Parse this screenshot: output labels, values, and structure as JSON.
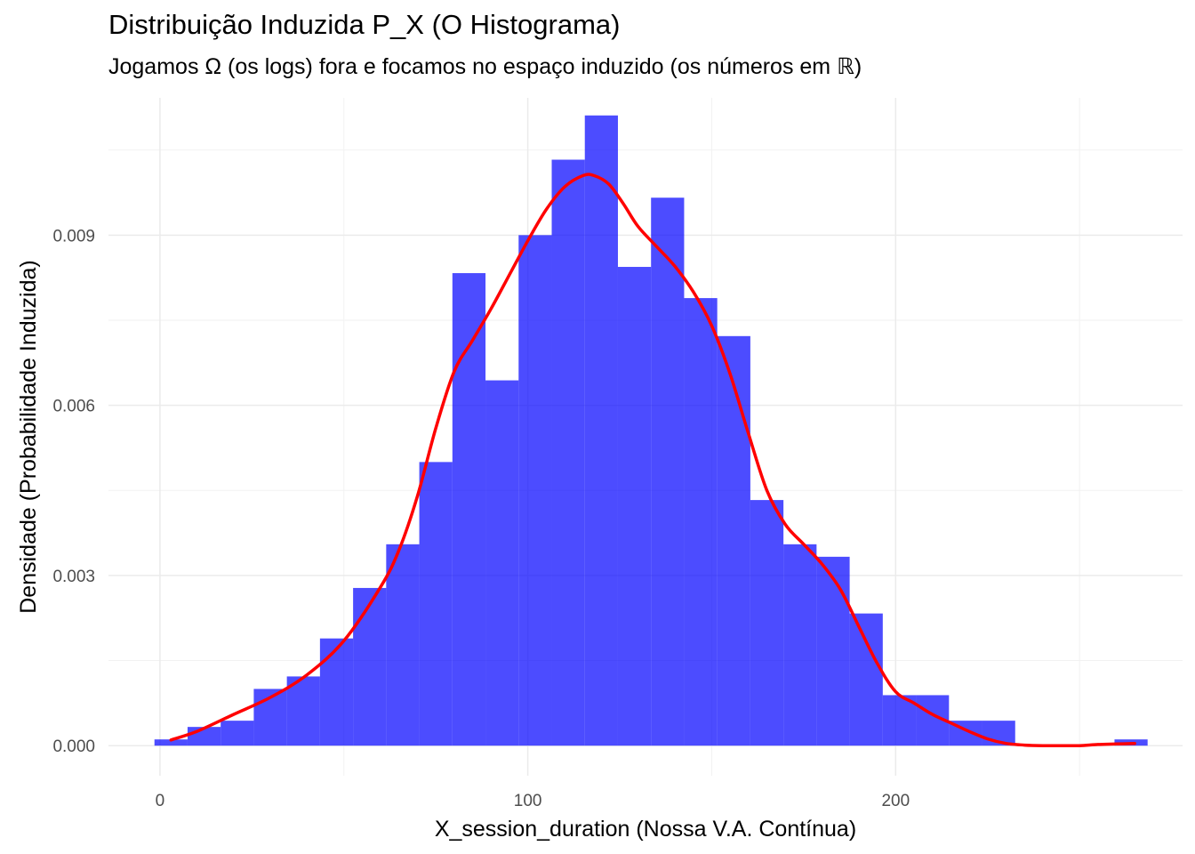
{
  "chart_data": {
    "type": "bar",
    "title": "Distribuição Induzida P_X (O Histograma)",
    "subtitle": "Jogamos Ω (os logs) fora e focamos no espaço induzido (os números em ℝ)",
    "xlabel": "X_session_duration (Nossa V.A. Contínua)",
    "ylabel": "Densidade (Probabilidade Induzida)",
    "xlim": [
      -14,
      278
    ],
    "ylim": [
      -0.00053,
      0.01142
    ],
    "x_ticks": [
      0,
      100,
      200
    ],
    "y_ticks": [
      0.0,
      0.003,
      0.006,
      0.009
    ],
    "x_tick_labels": [
      "0",
      "100",
      "200"
    ],
    "y_tick_labels": [
      "0.000",
      "0.003",
      "0.006",
      "0.009"
    ],
    "grid": true,
    "bin_width": 9.0,
    "histogram": {
      "name": "",
      "color": "#0000ff",
      "bins": [
        {
          "start": -1.5,
          "end": 7.5,
          "density": 0.00011
        },
        {
          "start": 7.5,
          "end": 16.5,
          "density": 0.00033
        },
        {
          "start": 16.5,
          "end": 25.5,
          "density": 0.00044
        },
        {
          "start": 25.5,
          "end": 34.5,
          "density": 0.001
        },
        {
          "start": 34.5,
          "end": 43.5,
          "density": 0.00122
        },
        {
          "start": 43.5,
          "end": 52.5,
          "density": 0.00189
        },
        {
          "start": 52.5,
          "end": 61.5,
          "density": 0.00278
        },
        {
          "start": 61.5,
          "end": 70.5,
          "density": 0.00355
        },
        {
          "start": 70.5,
          "end": 79.5,
          "density": 0.005
        },
        {
          "start": 79.5,
          "end": 88.5,
          "density": 0.00833
        },
        {
          "start": 88.5,
          "end": 97.5,
          "density": 0.00644
        },
        {
          "start": 97.5,
          "end": 106.5,
          "density": 0.009
        },
        {
          "start": 106.5,
          "end": 115.5,
          "density": 0.01033
        },
        {
          "start": 115.5,
          "end": 124.5,
          "density": 0.01111
        },
        {
          "start": 124.5,
          "end": 133.5,
          "density": 0.00844
        },
        {
          "start": 133.5,
          "end": 142.5,
          "density": 0.00966
        },
        {
          "start": 142.5,
          "end": 151.5,
          "density": 0.00789
        },
        {
          "start": 151.5,
          "end": 160.5,
          "density": 0.00722
        },
        {
          "start": 160.5,
          "end": 169.5,
          "density": 0.00433
        },
        {
          "start": 169.5,
          "end": 178.5,
          "density": 0.00355
        },
        {
          "start": 178.5,
          "end": 187.5,
          "density": 0.00333
        },
        {
          "start": 187.5,
          "end": 196.5,
          "density": 0.00233
        },
        {
          "start": 196.5,
          "end": 205.5,
          "density": 0.00089
        },
        {
          "start": 205.5,
          "end": 214.5,
          "density": 0.00089
        },
        {
          "start": 214.5,
          "end": 223.5,
          "density": 0.00044
        },
        {
          "start": 223.5,
          "end": 232.5,
          "density": 0.00044
        },
        {
          "start": 232.5,
          "end": 241.5,
          "density": 0.0
        },
        {
          "start": 241.5,
          "end": 250.5,
          "density": 0.0
        },
        {
          "start": 250.5,
          "end": 259.5,
          "density": 0.0
        },
        {
          "start": 259.5,
          "end": 268.5,
          "density": 0.00011
        }
      ]
    },
    "density_curve": {
      "name": "",
      "color": "#ff0000",
      "x": [
        3,
        10,
        20,
        30,
        40,
        50,
        60,
        65,
        70,
        75,
        80,
        85,
        90,
        95,
        100,
        105,
        110,
        115,
        118,
        122,
        126,
        130,
        135,
        140,
        145,
        150,
        155,
        160,
        165,
        170,
        175,
        180,
        185,
        190,
        195,
        200,
        205,
        210,
        215,
        220,
        225,
        230,
        235,
        240,
        245,
        250,
        255,
        260,
        265
      ],
      "y": [
        0.0001,
        0.00025,
        0.00055,
        0.00085,
        0.00125,
        0.00185,
        0.0028,
        0.00345,
        0.0044,
        0.0056,
        0.0066,
        0.00715,
        0.0077,
        0.0083,
        0.0089,
        0.00945,
        0.00985,
        0.01005,
        0.01005,
        0.0099,
        0.00955,
        0.00915,
        0.0088,
        0.00845,
        0.008,
        0.0074,
        0.00655,
        0.0055,
        0.0045,
        0.0039,
        0.00355,
        0.0032,
        0.00275,
        0.0021,
        0.00145,
        0.00095,
        0.00075,
        0.00055,
        0.0004,
        0.00025,
        0.00012,
        4e-05,
        1e-05,
        0.0,
        0.0,
        0.0,
        2e-05,
        3e-05,
        4e-05
      ]
    }
  }
}
